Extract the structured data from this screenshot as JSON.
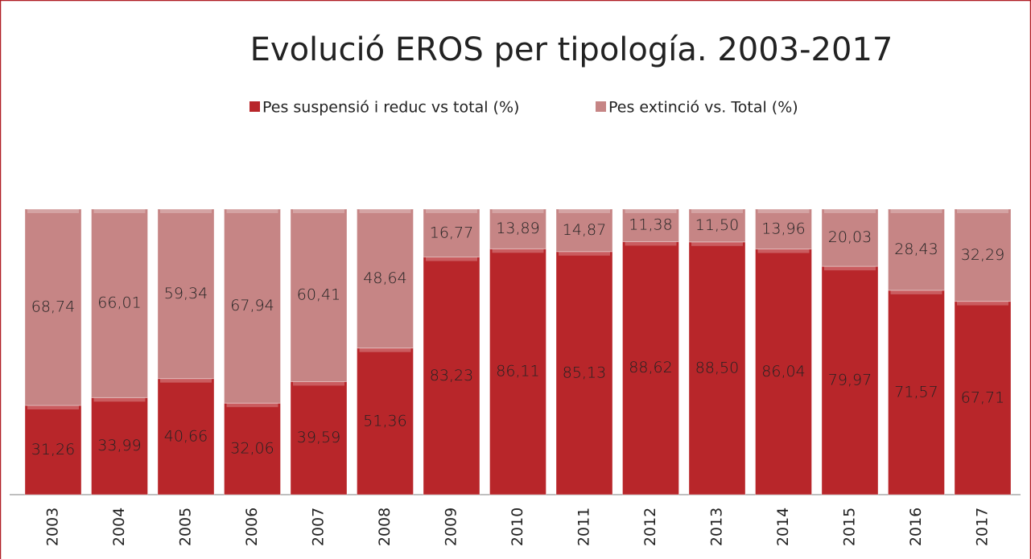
{
  "chart_data": {
    "type": "stacked_bar",
    "title": "Evolució EROS per tipología. 2003-2017",
    "categories": [
      "2003",
      "2004",
      "2005",
      "2006",
      "2007",
      "2008",
      "2009",
      "2010",
      "2011",
      "2012",
      "2013",
      "2014",
      "2015",
      "2016",
      "2017"
    ],
    "ylim": [
      0,
      100
    ],
    "series": [
      {
        "name": "Pes suspensió i reduc vs total (%)",
        "color": "#b8262a",
        "values": [
          31.26,
          33.99,
          40.66,
          32.06,
          39.59,
          51.36,
          83.23,
          86.11,
          85.13,
          88.62,
          88.5,
          86.04,
          79.97,
          71.57,
          67.71
        ],
        "value_labels": [
          "31,26",
          "33,99",
          "40,66",
          "32,06",
          "39,59",
          "51,36",
          "83,23",
          "86,11",
          "85,13",
          "88,62",
          "88,50",
          "86,04",
          "79,97",
          "71,57",
          "67,71"
        ]
      },
      {
        "name": "Pes extinció vs. Total (%)",
        "color": "#c68585",
        "values": [
          68.74,
          66.01,
          59.34,
          67.94,
          60.41,
          48.64,
          16.77,
          13.89,
          14.87,
          11.38,
          11.5,
          13.96,
          20.03,
          28.43,
          32.29
        ],
        "value_labels": [
          "68,74",
          "66,01",
          "59,34",
          "67,94",
          "60,41",
          "48,64",
          "16,77",
          "13,89",
          "14,87",
          "11,38",
          "11,50",
          "13,96",
          "20,03",
          "28,43",
          "32,29"
        ]
      }
    ]
  }
}
